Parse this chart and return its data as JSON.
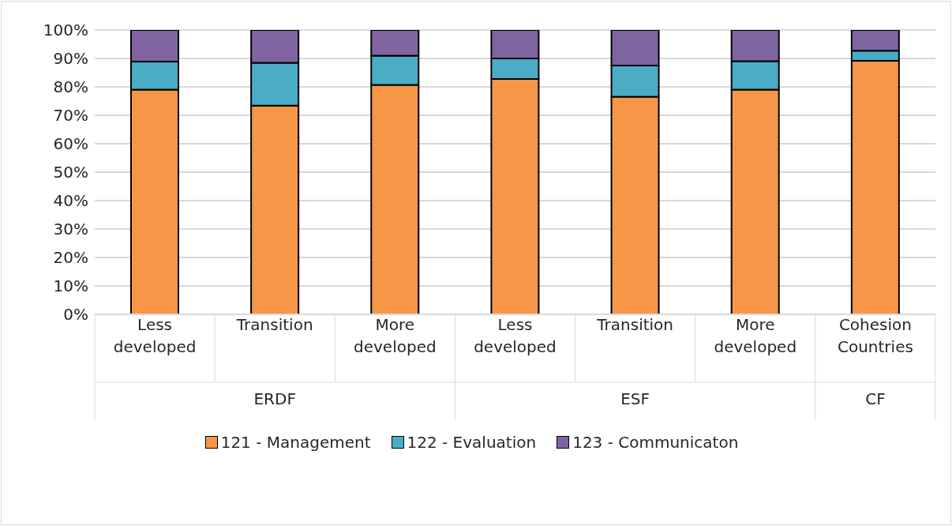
{
  "chart_data": {
    "type": "bar",
    "stacked": true,
    "categories": [
      "Less developed",
      "Transition",
      "More developed",
      "Less developed",
      "Transition",
      "More developed",
      "Cohesion Countries"
    ],
    "series": [
      {
        "name": "121 - Management",
        "color": "#f79646",
        "values": [
          79.0,
          73.4,
          80.7,
          82.8,
          76.5,
          79.0,
          89.2
        ]
      },
      {
        "name": "122 - Evaluation",
        "color": "#4bacc6",
        "values": [
          9.9,
          15.1,
          10.3,
          7.2,
          11.0,
          10.0,
          3.5
        ]
      },
      {
        "name": "123 - Communicaton",
        "color": "#8064a2",
        "values": [
          11.1,
          11.5,
          9.0,
          10.0,
          12.5,
          11.0,
          7.3
        ]
      }
    ],
    "annotations": [
      "ERDF",
      "ESF",
      "CF"
    ],
    "ylim": [
      0,
      100
    ],
    "yticks": [
      {
        "value": 0,
        "label": "0%"
      },
      {
        "value": 10,
        "label": "10%"
      },
      {
        "value": 20,
        "label": "20%"
      },
      {
        "value": 30,
        "label": "30%"
      },
      {
        "value": 40,
        "label": "40%"
      },
      {
        "value": 50,
        "label": "50%"
      },
      {
        "value": 60,
        "label": "60%"
      },
      {
        "value": 70,
        "label": "70%"
      },
      {
        "value": 80,
        "label": "80%"
      },
      {
        "value": 90,
        "label": "90%"
      },
      {
        "value": 100,
        "label": "100%"
      }
    ],
    "grid": "y",
    "legend": "bottom"
  }
}
